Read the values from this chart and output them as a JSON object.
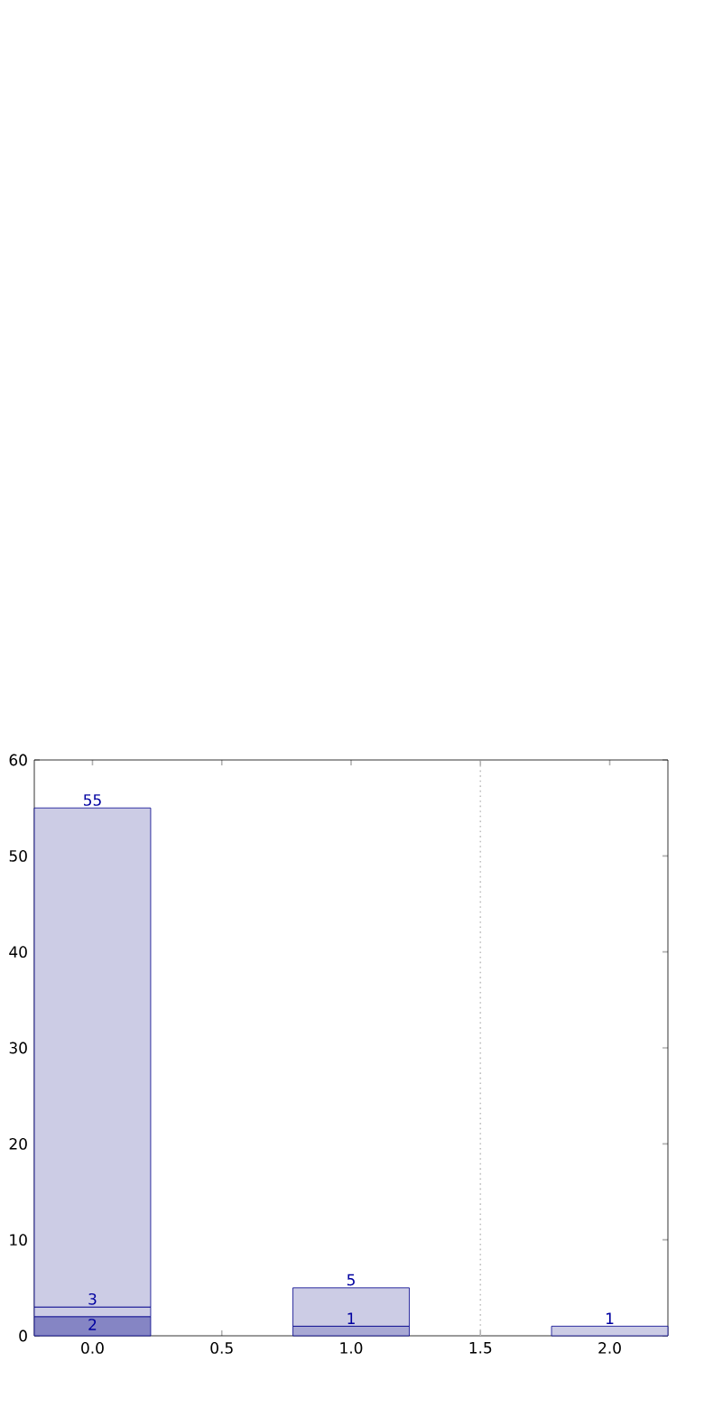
{
  "chart_data": {
    "type": "bar",
    "x": [
      0,
      1,
      2
    ],
    "stacked": true,
    "series": [
      {
        "colors": [
          "#8585c4",
          "#a8a8d4",
          "#cccce5"
        ],
        "values": [
          2,
          1,
          1
        ]
      },
      {
        "color": "#cccce5",
        "values": [
          1,
          null,
          null
        ]
      },
      {
        "color": "#cccce5",
        "values": [
          52,
          4,
          null
        ]
      }
    ],
    "annotations": [
      {
        "text": "55",
        "x": 0,
        "y": 55
      },
      {
        "text": "3",
        "x": 0,
        "y": 3
      },
      {
        "text": "2",
        "x": 0,
        "y": 2
      },
      {
        "text": "5",
        "x": 1,
        "y": 5
      },
      {
        "text": "1",
        "x": 1,
        "y": 1
      },
      {
        "text": "1",
        "x": 2,
        "y": 1
      }
    ],
    "xlim": [
      -0.225,
      2.225
    ],
    "ylim": [
      0,
      60
    ],
    "xticks": [
      {
        "value": 0,
        "label": "0.0"
      },
      {
        "value": 0.5,
        "label": "0.5"
      },
      {
        "value": 1,
        "label": "1.0"
      },
      {
        "value": 1.5,
        "label": "1.5"
      },
      {
        "value": 2,
        "label": "2.0"
      }
    ],
    "yticks": [
      0,
      10,
      20,
      30,
      40,
      50,
      60
    ],
    "ref_lines": [
      {
        "axis": "x",
        "value": 1.5,
        "color": "#c0c0c0",
        "line_style": "dotted"
      }
    ],
    "grid": false
  }
}
